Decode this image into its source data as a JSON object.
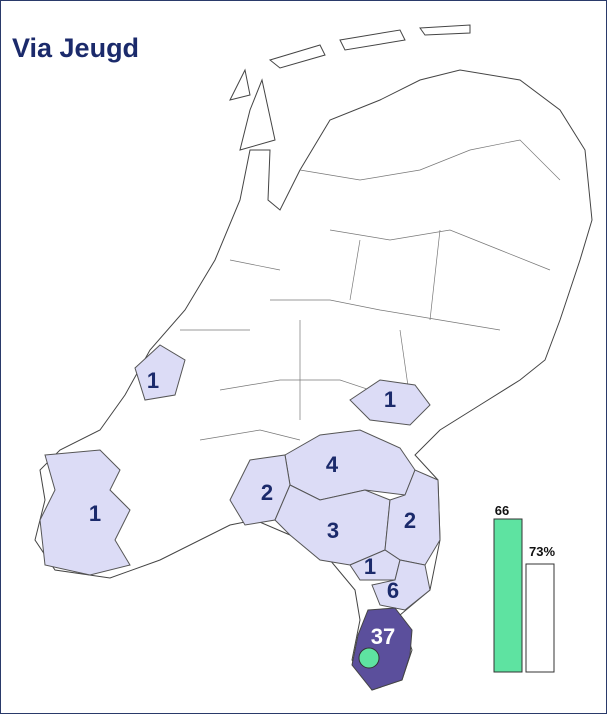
{
  "title": "Via Jeugd",
  "regions": [
    {
      "label": "1"
    },
    {
      "label": "1"
    },
    {
      "label": "4"
    },
    {
      "label": "2"
    },
    {
      "label": "1"
    },
    {
      "label": "3"
    },
    {
      "label": "2"
    },
    {
      "label": "1"
    },
    {
      "label": "6"
    },
    {
      "label": "37"
    }
  ],
  "bars": [
    {
      "label": "66",
      "color": "#5ee3a1"
    },
    {
      "label": "73%",
      "color": "#ffffff"
    }
  ]
}
